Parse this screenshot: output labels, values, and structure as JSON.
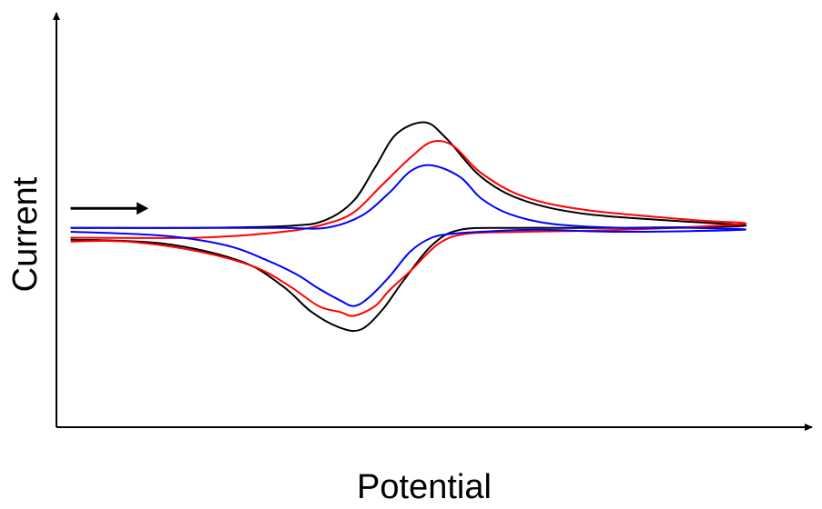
{
  "chart_data": {
    "type": "line",
    "xlabel": "Potential",
    "ylabel": "Current",
    "xlim": [
      0,
      100
    ],
    "ylim": [
      -100,
      100
    ],
    "grid": false,
    "legend": "none",
    "annotations": [
      {
        "type": "arrow",
        "from": [
          2,
          12
        ],
        "to": [
          13,
          12
        ],
        "color": "#000000"
      }
    ],
    "series": [
      {
        "color": "#000000",
        "forward_x": [
          2,
          20,
          33,
          38,
          42,
          45,
          48,
          52,
          55,
          60,
          66,
          75,
          90,
          97
        ],
        "forward_y": [
          2,
          2,
          3,
          6,
          16,
          33,
          50,
          56,
          48,
          28,
          16,
          9,
          5,
          3
        ],
        "reverse_x": [
          97,
          80,
          65,
          57,
          53,
          49,
          46,
          43,
          40,
          36,
          32,
          26,
          15,
          2
        ],
        "reverse_y": [
          3,
          2,
          2,
          1,
          -7,
          -25,
          -40,
          -50,
          -49,
          -41,
          -28,
          -15,
          -6,
          -4
        ]
      },
      {
        "color": "#ff0000",
        "forward_x": [
          2,
          20,
          32,
          38,
          42,
          46,
          50,
          53,
          56,
          60,
          66,
          75,
          90,
          97
        ],
        "forward_y": [
          -3,
          -3,
          0,
          4,
          10,
          24,
          38,
          46,
          44,
          30,
          18,
          11,
          6,
          4
        ],
        "reverse_x": [
          97,
          80,
          66,
          58,
          54,
          50,
          47,
          45,
          42,
          40,
          37,
          33,
          28,
          20,
          10,
          2
        ],
        "reverse_y": [
          2,
          1,
          0,
          -1,
          -6,
          -20,
          -30,
          -38,
          -43,
          -41,
          -38,
          -28,
          -18,
          -10,
          -5,
          -5
        ]
      },
      {
        "color": "#0000ff",
        "forward_x": [
          2,
          20,
          32,
          38,
          43,
          47,
          50,
          53,
          57,
          60,
          64,
          70,
          80,
          90,
          97
        ],
        "forward_y": [
          2,
          2,
          2,
          2,
          8,
          20,
          31,
          34,
          28,
          17,
          9,
          4,
          2,
          2,
          1
        ],
        "reverse_x": [
          97,
          80,
          68,
          60,
          56,
          53,
          50,
          47,
          44,
          42,
          40,
          37,
          34,
          30,
          24,
          15,
          2
        ],
        "reverse_y": [
          1,
          0,
          1,
          0,
          -1,
          -3,
          -10,
          -23,
          -34,
          -38,
          -35,
          -29,
          -22,
          -15,
          -7,
          -2,
          0
        ]
      }
    ]
  }
}
